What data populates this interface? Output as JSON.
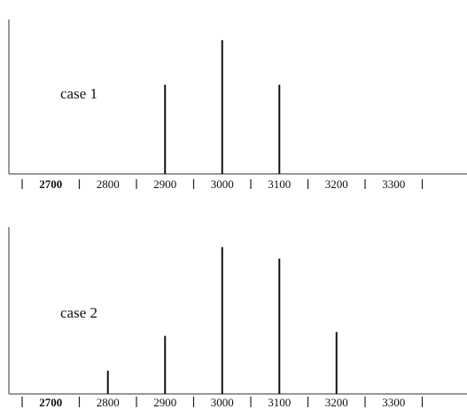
{
  "chart_data": [
    {
      "type": "bar",
      "label": "case 1",
      "x": [
        2900,
        3000,
        3100
      ],
      "values": [
        2,
        3,
        2
      ],
      "xticks": [
        "2700",
        "2800",
        "2900",
        "3000",
        "3100",
        "3200",
        "3300"
      ],
      "ylim": [
        0,
        3.9
      ],
      "grid": false
    },
    {
      "type": "bar",
      "label": "case 2",
      "x": [
        2800,
        2900,
        3000,
        3100,
        3200
      ],
      "values": [
        0.6,
        1.5,
        3.8,
        3.5,
        1.6
      ],
      "xticks": [
        "2700",
        "2800",
        "2900",
        "3000",
        "3100",
        "3200",
        "3300"
      ],
      "ylim": [
        0,
        4.5
      ],
      "grid": false
    }
  ]
}
